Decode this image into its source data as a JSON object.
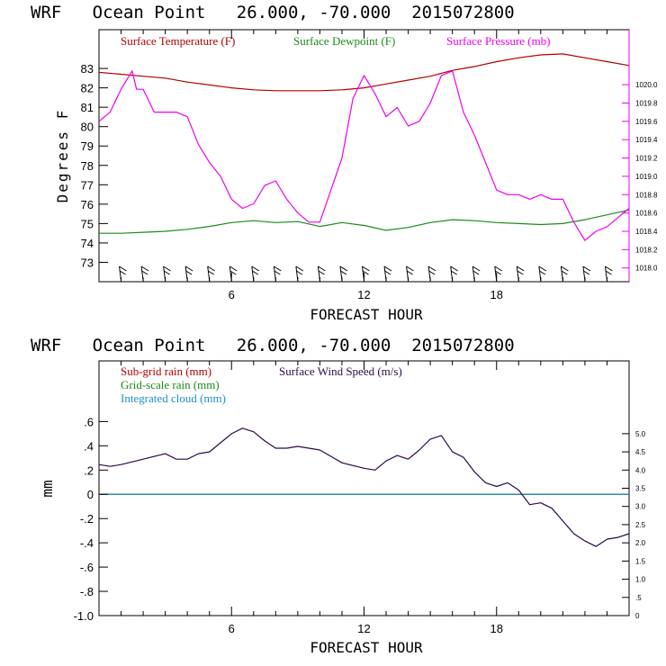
{
  "chart_data": [
    {
      "type": "line",
      "title": "WRF   Ocean Point   26.000, -70.000  2015072800",
      "xlabel": "FORECAST HOUR",
      "ylabel": "Degrees F",
      "xlim": [
        0,
        24
      ],
      "ylim": [
        72,
        85
      ],
      "x_ticks": [
        "6",
        "12",
        "18"
      ],
      "y_ticks": [
        "73",
        "74",
        "75",
        "76",
        "77",
        "78",
        "79",
        "80",
        "81",
        "82",
        "83"
      ],
      "y2lim": [
        1017.85,
        1020.6
      ],
      "y2_ticks": [
        "1018.0",
        "1018.2",
        "1018.4",
        "1018.6",
        "1018.8",
        "1019.0",
        "1019.2",
        "1019.4",
        "1019.6",
        "1019.8",
        "1020.0"
      ],
      "series": [
        {
          "name": "Surface Temperature (F)",
          "color": "#b00000",
          "axis": "left",
          "x": [
            0,
            1,
            2,
            3,
            4,
            5,
            6,
            7,
            8,
            9,
            10,
            11,
            12,
            13,
            14,
            15,
            16,
            17,
            18,
            19,
            20,
            21,
            22,
            23,
            24
          ],
          "values": [
            82.8,
            82.7,
            82.6,
            82.5,
            82.3,
            82.15,
            82.0,
            81.9,
            81.85,
            81.85,
            81.85,
            81.9,
            82.0,
            82.2,
            82.4,
            82.6,
            82.9,
            83.1,
            83.35,
            83.55,
            83.7,
            83.75,
            83.55,
            83.35,
            83.15
          ]
        },
        {
          "name": "Surface Dewpoint (F)",
          "color": "#1a8a1a",
          "axis": "left",
          "x": [
            0,
            1,
            2,
            3,
            4,
            5,
            6,
            7,
            8,
            9,
            10,
            11,
            12,
            13,
            14,
            15,
            16,
            17,
            18,
            19,
            20,
            21,
            22,
            23,
            24
          ],
          "values": [
            74.5,
            74.5,
            74.55,
            74.6,
            74.7,
            74.85,
            75.05,
            75.15,
            75.05,
            75.1,
            74.85,
            75.05,
            74.9,
            74.65,
            74.8,
            75.05,
            75.2,
            75.15,
            75.05,
            75.0,
            74.95,
            75.0,
            75.2,
            75.45,
            75.7
          ]
        },
        {
          "name": "Surface Pressure (mb)",
          "color": "#ee00ee",
          "axis": "right",
          "x": [
            0,
            0.5,
            1,
            1.5,
            1.7,
            2,
            2.5,
            3,
            3.5,
            4,
            4.5,
            5,
            5.5,
            6,
            6.5,
            7,
            7.5,
            8,
            8.5,
            9,
            9.5,
            10,
            10.5,
            11,
            11.5,
            12,
            12.5,
            13,
            13.5,
            14,
            14.5,
            15,
            15.5,
            16,
            16.5,
            17,
            17.5,
            18,
            18.5,
            19,
            19.5,
            20,
            20.5,
            21,
            21.5,
            22,
            22.5,
            23,
            23.5,
            24
          ],
          "values": [
            1019.6,
            1019.7,
            1019.95,
            1020.15,
            1019.95,
            1019.95,
            1019.7,
            1019.7,
            1019.7,
            1019.65,
            1019.35,
            1019.15,
            1019.0,
            1018.75,
            1018.65,
            1018.7,
            1018.9,
            1018.95,
            1018.75,
            1018.6,
            1018.5,
            1018.5,
            1018.85,
            1019.2,
            1019.85,
            1020.1,
            1019.9,
            1019.65,
            1019.75,
            1019.55,
            1019.6,
            1019.8,
            1020.1,
            1020.15,
            1019.7,
            1019.45,
            1019.15,
            1018.85,
            1018.8,
            1018.8,
            1018.75,
            1018.8,
            1018.75,
            1018.75,
            1018.5,
            1018.3,
            1018.4,
            1018.45,
            1018.55,
            1018.65
          ]
        }
      ]
    },
    {
      "type": "line",
      "title": "WRF   Ocean Point   26.000, -70.000  2015072800",
      "xlabel": "FORECAST HOUR",
      "ylabel": "mm",
      "xlim": [
        0,
        24
      ],
      "ylim": [
        -1.0,
        1.1
      ],
      "x_ticks": [
        "6",
        "12",
        "18"
      ],
      "y_ticks": [
        "-1.0",
        "-.8",
        "-.6",
        "-.4",
        "-.2",
        "0",
        ".2",
        ".4",
        ".6"
      ],
      "y2lim": [
        0,
        7.0
      ],
      "y2_ticks": [
        "0",
        ".5",
        "1.0",
        "1.5",
        "2.0",
        "2.5",
        "3.0",
        "3.5",
        "4.0",
        "4.5",
        "5.0"
      ],
      "series": [
        {
          "name": "Sub-grid rain (mm)",
          "color": "#b00000",
          "axis": "left",
          "x": [
            0,
            24
          ],
          "values": [
            0,
            0
          ]
        },
        {
          "name": "Grid-scale rain (mm)",
          "color": "#1a8a1a",
          "axis": "left",
          "x": [
            0,
            24
          ],
          "values": [
            0,
            0
          ]
        },
        {
          "name": "Integrated cloud (mm)",
          "color": "#1e90c8",
          "axis": "left",
          "x": [
            0,
            24
          ],
          "values": [
            0,
            0
          ]
        },
        {
          "name": "Surface Wind Speed (m/s)",
          "color": "#2a0a4a",
          "axis": "right",
          "x": [
            0,
            0.5,
            1,
            2,
            3,
            3.5,
            4,
            4.5,
            5,
            5.5,
            6,
            6.5,
            7,
            7.5,
            8,
            8.5,
            9,
            9.5,
            10,
            11,
            12,
            12.5,
            13,
            13.5,
            14,
            14.5,
            15,
            15.5,
            16,
            16.5,
            17,
            17.5,
            18,
            18.5,
            19,
            19.5,
            20,
            20.5,
            21,
            21.5,
            22,
            22.5,
            23,
            23.5,
            24
          ],
          "values": [
            4.15,
            4.1,
            4.15,
            4.3,
            4.45,
            4.3,
            4.3,
            4.45,
            4.5,
            4.75,
            5.0,
            5.15,
            5.05,
            4.8,
            4.6,
            4.6,
            4.65,
            4.6,
            4.55,
            4.2,
            4.05,
            4.0,
            4.25,
            4.4,
            4.3,
            4.55,
            4.85,
            4.95,
            4.5,
            4.35,
            3.95,
            3.65,
            3.55,
            3.65,
            3.45,
            3.05,
            3.1,
            2.95,
            2.6,
            2.25,
            2.05,
            1.9,
            2.1,
            2.15,
            2.25
          ]
        }
      ]
    }
  ]
}
